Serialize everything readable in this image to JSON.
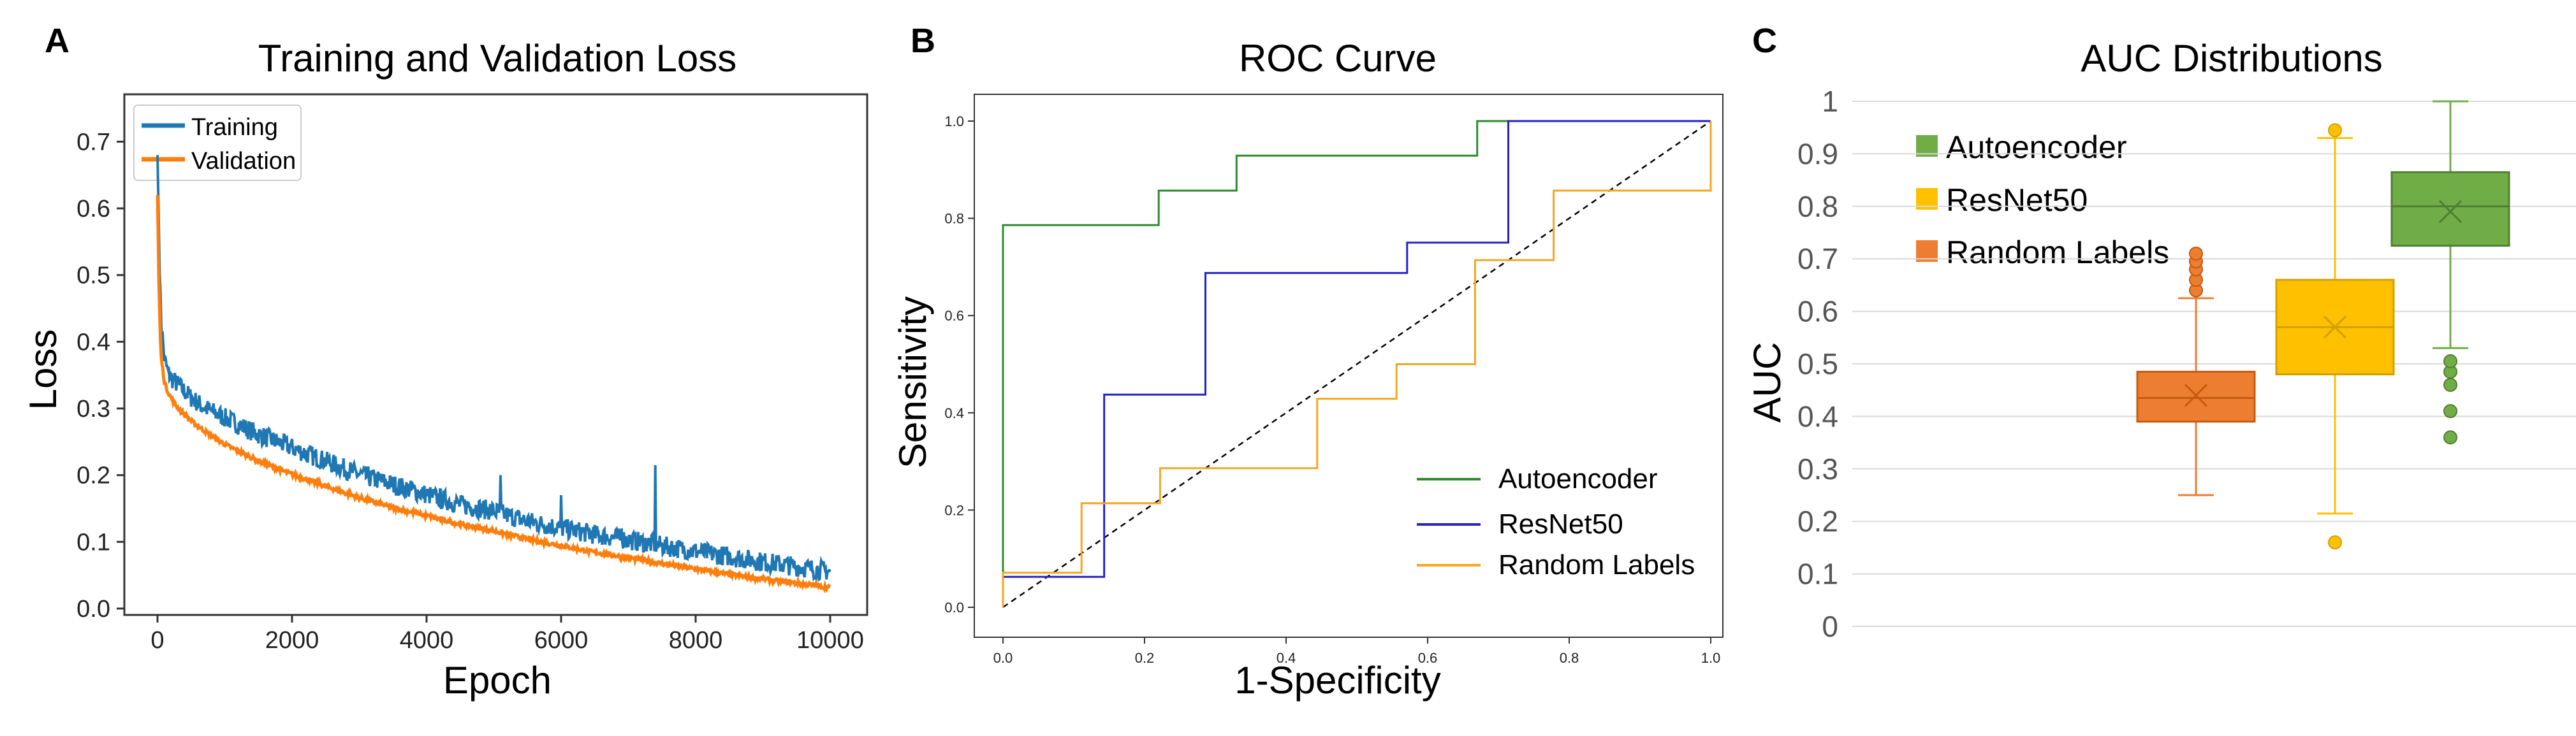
{
  "chart_data": [
    {
      "panel_letter": "A",
      "type": "line",
      "title": "Training and Validation Loss",
      "xlabel": "Epoch",
      "ylabel": "Loss",
      "xlim": [
        0,
        10000
      ],
      "ylim": [
        0,
        0.75
      ],
      "xticks": [
        0,
        2000,
        4000,
        6000,
        8000,
        10000
      ],
      "xtick_labels": [
        "0",
        "2000",
        "4000",
        "6000",
        "8000",
        "10000"
      ],
      "yticks": [
        0.0,
        0.1,
        0.2,
        0.3,
        0.4,
        0.5,
        0.6,
        0.7
      ],
      "ytick_labels": [
        "0.0",
        "0.1",
        "0.2",
        "0.3",
        "0.4",
        "0.5",
        "0.6",
        "0.7"
      ],
      "legend_position": "top-left",
      "grid": false,
      "series": [
        {
          "name": "Training",
          "color": "#1f77b4",
          "x": [
            0,
            25,
            50,
            100,
            150,
            200,
            300,
            400,
            500,
            700,
            1000,
            1500,
            2000,
            2500,
            3000,
            3500,
            4000,
            4500,
            5000,
            5500,
            6000,
            6500,
            7000,
            7500,
            8000,
            8500,
            9000,
            9500,
            10000
          ],
          "y": [
            0.68,
            0.55,
            0.43,
            0.37,
            0.35,
            0.34,
            0.33,
            0.32,
            0.31,
            0.295,
            0.28,
            0.255,
            0.235,
            0.215,
            0.195,
            0.18,
            0.165,
            0.15,
            0.14,
            0.125,
            0.115,
            0.105,
            0.097,
            0.088,
            0.08,
            0.072,
            0.064,
            0.057,
            0.05
          ],
          "noise": 0.015,
          "spikes": [
            {
              "x": 5100,
              "y": 0.2
            },
            {
              "x": 6000,
              "y": 0.17
            },
            {
              "x": 7400,
              "y": 0.215
            },
            {
              "x": 6900,
              "y": 0.12
            }
          ]
        },
        {
          "name": "Validation",
          "color": "#ff7f0e",
          "x": [
            0,
            25,
            50,
            100,
            150,
            200,
            300,
            400,
            500,
            700,
            1000,
            1500,
            2000,
            2500,
            3000,
            3500,
            4000,
            4500,
            5000,
            5500,
            6000,
            6500,
            7000,
            7500,
            8000,
            8500,
            9000,
            9500,
            10000
          ],
          "y": [
            0.62,
            0.47,
            0.38,
            0.34,
            0.325,
            0.315,
            0.3,
            0.29,
            0.28,
            0.265,
            0.245,
            0.22,
            0.2,
            0.182,
            0.165,
            0.15,
            0.138,
            0.125,
            0.115,
            0.103,
            0.093,
            0.083,
            0.075,
            0.066,
            0.058,
            0.05,
            0.043,
            0.037,
            0.03
          ],
          "noise": 0.003
        }
      ]
    },
    {
      "panel_letter": "B",
      "type": "line",
      "title": "ROC Curve",
      "xlabel": "1-Specificity",
      "ylabel": "Sensitivity",
      "xlim": [
        0,
        1
      ],
      "ylim": [
        0,
        1
      ],
      "xticks": [
        0.0,
        0.2,
        0.4,
        0.6,
        0.8,
        1.0
      ],
      "xtick_labels": [
        "0.0",
        "0.2",
        "0.4",
        "0.6",
        "0.8",
        "1.0"
      ],
      "yticks": [
        0.0,
        0.2,
        0.4,
        0.6,
        0.8,
        1.0
      ],
      "ytick_labels": [
        "0.0",
        "0.2",
        "0.4",
        "0.6",
        "0.8",
        "1.0"
      ],
      "legend_position": "bottom-right",
      "grid": false,
      "series": [
        {
          "name": "Autoencoder",
          "color": "#2e8b2e",
          "x": [
            0,
            0,
            0.22,
            0.22,
            0.33,
            0.33,
            0.67,
            0.67,
            1.0
          ],
          "y": [
            0,
            0.786,
            0.786,
            0.857,
            0.857,
            0.929,
            0.929,
            1.0,
            1.0
          ]
        },
        {
          "name": "ResNet50",
          "color": "#2222cc",
          "x": [
            0,
            0,
            0.143,
            0.143,
            0.286,
            0.286,
            0.571,
            0.571,
            0.714,
            0.714,
            1.0
          ],
          "y": [
            0,
            0.0625,
            0.0625,
            0.4375,
            0.4375,
            0.6875,
            0.6875,
            0.75,
            0.75,
            1.0,
            1.0
          ]
        },
        {
          "name": "Random Labels",
          "color": "#f5a623",
          "x": [
            0,
            0,
            0.111,
            0.111,
            0.222,
            0.222,
            0.444,
            0.444,
            0.556,
            0.556,
            0.667,
            0.667,
            0.778,
            0.778,
            1.0,
            1.0
          ],
          "y": [
            0,
            0.071,
            0.071,
            0.214,
            0.214,
            0.286,
            0.286,
            0.429,
            0.429,
            0.5,
            0.5,
            0.714,
            0.714,
            0.857,
            0.857,
            1.0
          ]
        }
      ],
      "reference_line": {
        "x": [
          0,
          1
        ],
        "y": [
          0,
          1
        ],
        "style": "dashed",
        "color": "#000000"
      }
    },
    {
      "panel_letter": "C",
      "type": "box",
      "title": "AUC Distributions",
      "xlabel": "",
      "ylabel": "AUC",
      "ylim": [
        0,
        1
      ],
      "yticks": [
        0,
        0.1,
        0.2,
        0.3,
        0.4,
        0.5,
        0.6,
        0.7,
        0.8,
        0.9,
        1
      ],
      "ytick_labels": [
        "0",
        "0.1",
        "0.2",
        "0.3",
        "0.4",
        "0.5",
        "0.6",
        "0.7",
        "0.8",
        "0.9",
        "1"
      ],
      "legend_position": "top-left",
      "grid": true,
      "series": [
        {
          "name": "Random Labels",
          "color": "#ed7d31",
          "edge": "#c55a11",
          "whisker_low": 0.25,
          "q1": 0.39,
          "median": 0.435,
          "q3": 0.485,
          "whisker_high": 0.625,
          "mean": 0.44,
          "outliers": [
            0.64,
            0.66,
            0.68,
            0.695,
            0.71
          ]
        },
        {
          "name": "ResNet50",
          "color": "#ffc000",
          "edge": "#d4a000",
          "whisker_low": 0.215,
          "q1": 0.48,
          "median": 0.57,
          "q3": 0.66,
          "whisker_high": 0.93,
          "mean": 0.57,
          "outliers": [
            0.16,
            0.945
          ]
        },
        {
          "name": "Autoencoder",
          "color": "#70ad47",
          "edge": "#507e32",
          "whisker_low": 0.53,
          "q1": 0.725,
          "median": 0.8,
          "q3": 0.865,
          "whisker_high": 1.0,
          "mean": 0.79,
          "outliers": [
            0.36,
            0.41,
            0.46,
            0.485,
            0.505
          ]
        }
      ],
      "legend_order": [
        "Autoencoder",
        "ResNet50",
        "Random Labels"
      ]
    }
  ]
}
